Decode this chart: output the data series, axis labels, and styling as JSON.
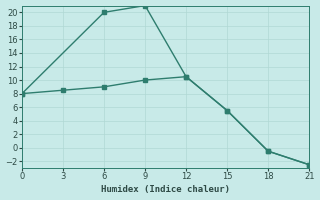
{
  "line1_x": [
    0,
    6,
    9,
    12,
    15,
    18,
    21
  ],
  "line1_y": [
    8,
    20,
    21,
    10.5,
    5.5,
    -0.5,
    -2.5
  ],
  "line2_x": [
    0,
    3,
    6,
    9,
    12,
    15,
    18,
    21
  ],
  "line2_y": [
    8,
    8.5,
    9,
    10,
    10.5,
    5.5,
    -0.5,
    -2.5
  ],
  "color": "#2e7d6e",
  "bg_color": "#c8eae8",
  "xlabel": "Humidex (Indice chaleur)",
  "xlim": [
    0,
    21
  ],
  "ylim": [
    -3,
    21
  ],
  "xticks": [
    0,
    3,
    6,
    9,
    12,
    15,
    18,
    21
  ],
  "yticks": [
    -2,
    0,
    2,
    4,
    6,
    8,
    10,
    12,
    14,
    16,
    18,
    20
  ],
  "grid_color": "#b0d8d4",
  "marker": "s",
  "markersize": 2.5,
  "linewidth": 1.0
}
